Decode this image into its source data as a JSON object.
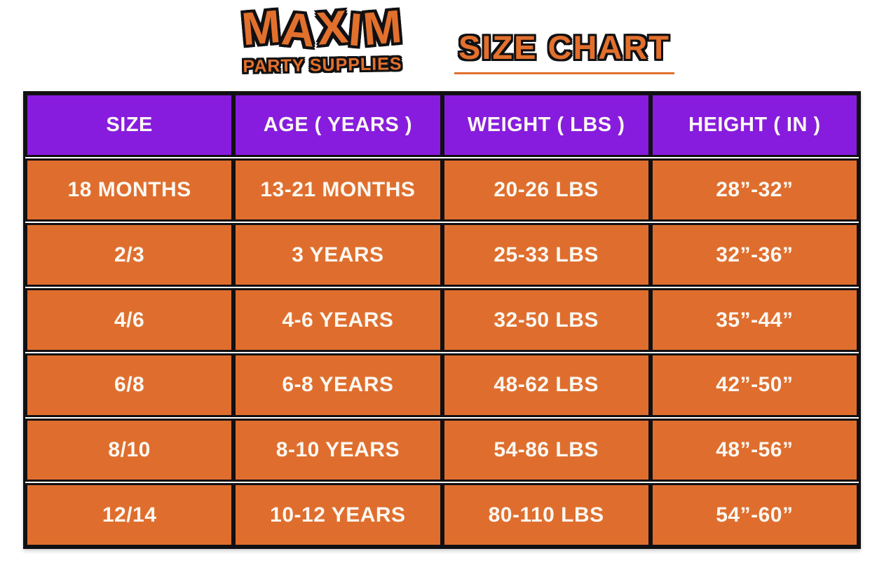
{
  "brand": {
    "name": "MAXIM",
    "tagline": "PARTY SUPPLIES",
    "color": "#E2702D"
  },
  "title": {
    "text": "SIZE CHART"
  },
  "chart_data": {
    "type": "table",
    "title": "MAXIM PARTY SUPPLIES SIZE CHART",
    "columns": [
      "SIZE",
      "AGE ( YEARS )",
      "WEIGHT ( LBS )",
      "HEIGHT ( IN )"
    ],
    "rows": [
      [
        "18 MONTHS",
        "13-21 MONTHS",
        "20-26 LBS",
        "28”-32”"
      ],
      [
        "2/3",
        "3 YEARS",
        "25-33 LBS",
        "32”-36”"
      ],
      [
        "4/6",
        "4-6 YEARS",
        "32-50 LBS",
        "35”-44”"
      ],
      [
        "6/8",
        "6-8 YEARS",
        "48-62 LBS",
        "42”-50”"
      ],
      [
        "8/10",
        "8-10 YEARS",
        "54-86 LBS",
        "48”-56”"
      ],
      [
        "12/14",
        "10-12 YEARS",
        "80-110 LBS",
        "54”-60”"
      ]
    ],
    "colors": {
      "header_bg": "#871CDE",
      "row_bg": "#DF6E2E",
      "grid": "#111012",
      "text": "#FBF8F2",
      "accent": "#E2702D"
    },
    "legend": false,
    "grid_on": true
  }
}
